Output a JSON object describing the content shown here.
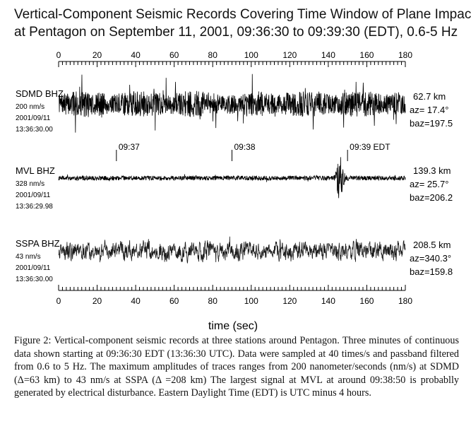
{
  "title": {
    "line1": "Vertical-Component Seismic Records Covering Time Window of Plane Impact",
    "line2": "at Pentagon on September 11, 2001, 09:36:30 to 09:39:30 (EDT), 0.6-5 Hz"
  },
  "chart_data": {
    "type": "line",
    "xlabel": "time (sec)",
    "xlim": [
      0,
      180
    ],
    "xticks": [
      0,
      20,
      40,
      60,
      80,
      100,
      120,
      140,
      160,
      180
    ],
    "time_markers": [
      {
        "t": 30,
        "label": "09:37"
      },
      {
        "t": 90,
        "label": "09:38"
      },
      {
        "t": 150,
        "label": "09:39 EDT"
      }
    ],
    "series": [
      {
        "name": "SDMD BHZ",
        "scale": "200 nm/s",
        "date": "2001/09/11",
        "start": "13:36:30.00",
        "distance": "62.7 km",
        "az": "az= 17.4°",
        "baz": "baz=197.5",
        "relative_amplitude": 1.0
      },
      {
        "name": "MVL BHZ",
        "scale": "328 nm/s",
        "date": "2001/09/11",
        "start": "13:36:29.98",
        "distance": "139.3 km",
        "az": "az= 25.7°",
        "baz": "baz=206.2",
        "relative_amplitude": 0.15,
        "burst_time": 146
      },
      {
        "name": "SSPA BHZ",
        "scale": "43 nm/s",
        "date": "2001/09/11",
        "start": "13:36:30.00",
        "distance": "208.5 km",
        "az": "az=340.3°",
        "baz": "baz=159.8",
        "relative_amplitude": 0.7
      }
    ]
  },
  "caption": {
    "text": "Figure 2:  Vertical-component seismic records at three stations around Pentagon. Three minutes of continuous data shown starting at 09:36:30 EDT (13:36:30 UTC). Data were sampled at 40 times/s and passband filtered from 0.6 to 5 Hz. The maximum amplitudes of traces ranges from 200 nanometer/seconds (nm/s) at SDMD (Δ=63 km) to 43 nm/s at SSPA (Δ =208 km) The largest signal at MVL at around 09:38:50 is probablly generated by electrical disturbance. Eastern Daylight Time (EDT) is UTC minus 4 hours."
  },
  "colors": {
    "trace": "#000000",
    "trace_sspa": "#1a1a1a",
    "axis": "#000000"
  }
}
